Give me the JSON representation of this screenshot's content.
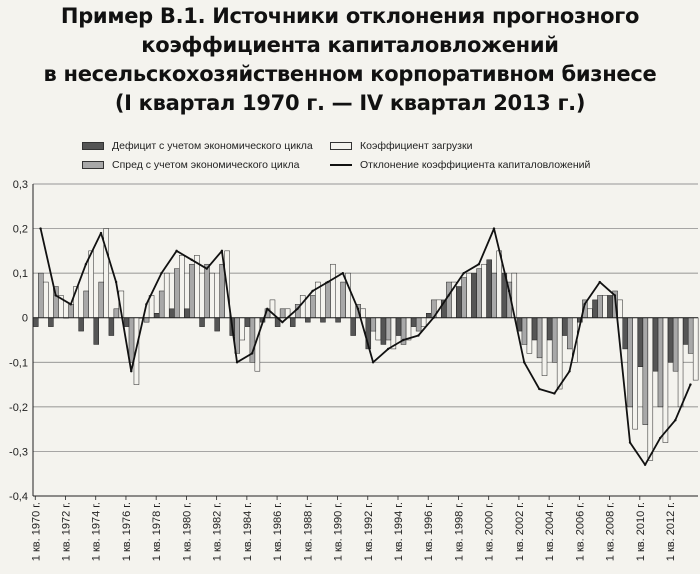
{
  "title_lines": [
    "Пример В.1. Источники отклонения прогнозного",
    "коэффициента капиталовложений",
    "в несельскохозяйственном корпоративном бизнесе",
    "(I квартал 1970 г. — IV квартал 2013 г.)"
  ],
  "legend": {
    "deficit": "Дефицит с учетом экономического цикла",
    "spread": "Спред с учетом экономического цикла",
    "capacity": "Коэффициент загрузки",
    "deviation": "Отклонение коэффициента капиталовложений"
  },
  "colors": {
    "deficit": "#555555",
    "spread": "#a8a8a8",
    "capacity": "#f4f3ee",
    "line": "#111111"
  },
  "chart_data": {
    "type": "bar",
    "ylim": [
      -0.4,
      0.3
    ],
    "yticks": [
      "0,3",
      "0,2",
      "0,1",
      "0",
      "-0,1",
      "-0,2",
      "-0,3",
      "-0,4"
    ],
    "xlabels": [
      "1 кв. 1970 г.",
      "1 кв. 1972 г.",
      "1 кв. 1974 г.",
      "1 кв. 1976 г.",
      "1 кв. 1978 г.",
      "1 кв. 1980 г.",
      "1 кв. 1982 г.",
      "1 кв. 1984 г.",
      "1 кв. 1986 г.",
      "1 кв. 1988 г.",
      "1 кв. 1990 г.",
      "1 кв. 1992 г.",
      "1 кв. 1994 г.",
      "1 кв. 1996 г.",
      "1 кв. 1998 г.",
      "1 кв. 2000 г.",
      "1 кв. 2002 г.",
      "1 кв. 2004 г.",
      "1 кв. 2006 г.",
      "1 кв. 2008 г.",
      "1 кв. 2010 г.",
      "1 кв. 2012 г."
    ],
    "years": [
      1970,
      1971,
      1972,
      1973,
      1974,
      1975,
      1976,
      1977,
      1978,
      1979,
      1980,
      1981,
      1982,
      1983,
      1984,
      1985,
      1986,
      1987,
      1988,
      1989,
      1990,
      1991,
      1992,
      1993,
      1994,
      1995,
      1996,
      1997,
      1998,
      1999,
      2000,
      2001,
      2002,
      2003,
      2004,
      2005,
      2006,
      2007,
      2008,
      2009,
      2010,
      2011,
      2012,
      2013
    ],
    "series": [
      {
        "name": "Дефицит с учетом экономического цикла",
        "values": [
          -0.02,
          -0.02,
          0.0,
          -0.03,
          -0.06,
          -0.04,
          -0.02,
          0.0,
          0.01,
          0.02,
          0.02,
          -0.02,
          -0.03,
          -0.04,
          -0.02,
          -0.01,
          -0.02,
          -0.02,
          -0.01,
          -0.01,
          -0.01,
          -0.04,
          -0.07,
          -0.06,
          -0.04,
          -0.02,
          0.01,
          0.04,
          0.07,
          0.1,
          0.13,
          0.1,
          -0.03,
          -0.05,
          -0.05,
          -0.04,
          -0.01,
          0.04,
          0.05,
          -0.07,
          -0.11,
          -0.12,
          -0.1,
          -0.06
        ]
      },
      {
        "name": "Спред с учетом экономического цикла",
        "values": [
          0.1,
          0.07,
          0.03,
          0.06,
          0.08,
          0.02,
          -0.1,
          -0.01,
          0.06,
          0.11,
          0.12,
          0.12,
          0.12,
          -0.08,
          -0.1,
          0.02,
          0.02,
          0.03,
          0.05,
          0.08,
          0.08,
          0.03,
          -0.03,
          -0.05,
          -0.06,
          -0.03,
          0.04,
          0.08,
          0.09,
          0.11,
          0.1,
          0.08,
          -0.06,
          -0.09,
          -0.1,
          -0.07,
          0.04,
          0.05,
          0.06,
          -0.2,
          -0.24,
          -0.2,
          -0.12,
          -0.08
        ]
      },
      {
        "name": "Коэффициент загрузки",
        "values": [
          0.08,
          0.05,
          0.07,
          0.15,
          0.2,
          0.06,
          -0.15,
          0.05,
          0.1,
          0.14,
          0.14,
          0.1,
          0.15,
          -0.05,
          -0.12,
          0.04,
          0.02,
          0.05,
          0.08,
          0.12,
          0.1,
          0.02,
          -0.05,
          -0.07,
          -0.05,
          -0.02,
          0.04,
          0.08,
          0.1,
          0.12,
          0.15,
          0.1,
          -0.08,
          -0.13,
          -0.16,
          -0.1,
          0.02,
          0.05,
          0.04,
          -0.25,
          -0.32,
          -0.28,
          -0.2,
          -0.14
        ]
      },
      {
        "name": "Отклонение коэффициента капиталовложений",
        "values": [
          0.2,
          0.05,
          0.03,
          0.12,
          0.19,
          0.08,
          -0.12,
          0.03,
          0.1,
          0.15,
          0.13,
          0.11,
          0.15,
          -0.1,
          -0.08,
          0.02,
          -0.01,
          0.02,
          0.06,
          0.08,
          0.1,
          0.02,
          -0.1,
          -0.07,
          -0.05,
          -0.04,
          0.0,
          0.05,
          0.1,
          0.12,
          0.2,
          0.06,
          -0.1,
          -0.16,
          -0.17,
          -0.12,
          0.03,
          0.08,
          0.05,
          -0.28,
          -0.33,
          -0.27,
          -0.23,
          -0.15
        ]
      }
    ]
  }
}
